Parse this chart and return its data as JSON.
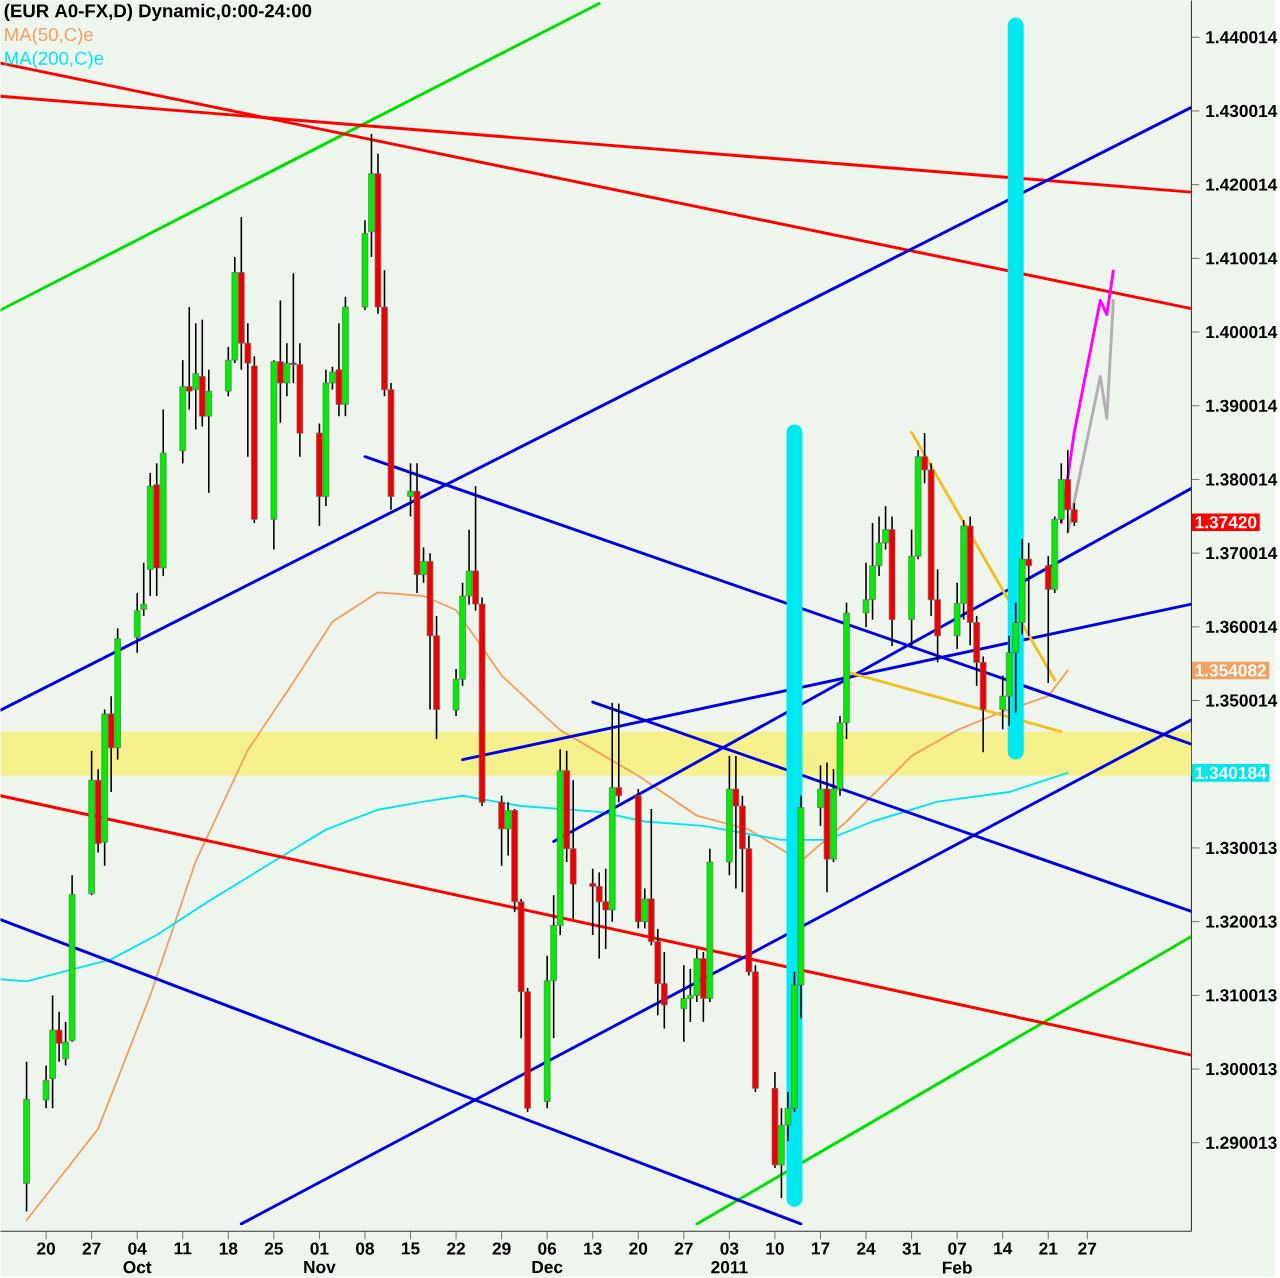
{
  "chart_data": {
    "type": "candlestick",
    "title": "(EUR A0-FX,D) Dynamic,0:00-24:00",
    "legend": "top left",
    "xlim": [
      "2010-09-13",
      "2011-03-15"
    ],
    "ylim": [
      1.278,
      1.445
    ],
    "xticks": [
      {
        "value": "2010-09-20",
        "label": "20"
      },
      {
        "value": "2010-09-27",
        "label": "27"
      },
      {
        "value": "2010-10-04",
        "label": "04"
      },
      {
        "value": "2010-10-11",
        "label": "11"
      },
      {
        "value": "2010-10-18",
        "label": "18"
      },
      {
        "value": "2010-10-25",
        "label": "25"
      },
      {
        "value": "2010-11-01",
        "label": "01"
      },
      {
        "value": "2010-11-08",
        "label": "08"
      },
      {
        "value": "2010-11-15",
        "label": "15"
      },
      {
        "value": "2010-11-22",
        "label": "22"
      },
      {
        "value": "2010-11-29",
        "label": "29"
      },
      {
        "value": "2010-12-06",
        "label": "06"
      },
      {
        "value": "2010-12-13",
        "label": "13"
      },
      {
        "value": "2010-12-20",
        "label": "20"
      },
      {
        "value": "2010-12-27",
        "label": "27"
      },
      {
        "value": "2011-01-03",
        "label": "03"
      },
      {
        "value": "2011-01-10",
        "label": "10"
      },
      {
        "value": "2011-01-17",
        "label": "17"
      },
      {
        "value": "2011-01-24",
        "label": "24"
      },
      {
        "value": "2011-01-31",
        "label": "31"
      },
      {
        "value": "2011-02-07",
        "label": "07"
      },
      {
        "value": "2011-02-14",
        "label": "14"
      },
      {
        "value": "2011-02-21",
        "label": "21"
      },
      {
        "value": "2011-02-27",
        "label": "27"
      }
    ],
    "x2lim": [
      "2010-09-13",
      "2011-03-15"
    ],
    "x2ticks": [
      {
        "value": "2010-10-04",
        "label": "Oct"
      },
      {
        "value": "2010-11-01",
        "label": "Nov"
      },
      {
        "value": "2010-12-06",
        "label": "Dec"
      },
      {
        "value": "2011-01-03",
        "label": "2011"
      },
      {
        "value": "2011-02-07",
        "label": "Feb"
      }
    ],
    "yticks": [
      1.290013,
      1.300013,
      1.310013,
      1.320013,
      1.330013,
      1.350014,
      1.360014,
      1.370014,
      1.380014,
      1.390014,
      1.400014,
      1.410014,
      1.420014,
      1.430014,
      1.440014
    ],
    "annotations": [
      "1.37420",
      "1.354082",
      "1.340184"
    ],
    "bands": [
      {
        "axis": "y",
        "from": 1.3398,
        "to": 1.3458,
        "color": "#f4f08c"
      }
    ],
    "x": [
      "2010-09-17",
      "2010-09-20",
      "2010-09-21",
      "2010-09-22",
      "2010-09-23",
      "2010-09-24",
      "2010-09-27",
      "2010-09-28",
      "2010-09-29",
      "2010-09-30",
      "2010-10-01",
      "2010-10-04",
      "2010-10-05",
      "2010-10-06",
      "2010-10-07",
      "2010-10-08",
      "2010-10-11",
      "2010-10-12",
      "2010-10-13",
      "2010-10-14",
      "2010-10-15",
      "2010-10-18",
      "2010-10-19",
      "2010-10-20",
      "2010-10-21",
      "2010-10-22",
      "2010-10-25",
      "2010-10-26",
      "2010-10-27",
      "2010-10-28",
      "2010-10-29",
      "2010-11-01",
      "2010-11-02",
      "2010-11-03",
      "2010-11-04",
      "2010-11-05",
      "2010-11-08",
      "2010-11-09",
      "2010-11-10",
      "2010-11-11",
      "2010-11-12",
      "2010-11-15",
      "2010-11-16",
      "2010-11-17",
      "2010-11-18",
      "2010-11-19",
      "2010-11-22",
      "2010-11-23",
      "2010-11-24",
      "2010-11-25",
      "2010-11-26",
      "2010-11-29",
      "2010-11-30",
      "2010-12-01",
      "2010-12-02",
      "2010-12-03",
      "2010-12-06",
      "2010-12-07",
      "2010-12-08",
      "2010-12-09",
      "2010-12-10",
      "2010-12-13",
      "2010-12-14",
      "2010-12-15",
      "2010-12-16",
      "2010-12-17",
      "2010-12-20",
      "2010-12-21",
      "2010-12-22",
      "2010-12-23",
      "2010-12-24",
      "2010-12-27",
      "2010-12-28",
      "2010-12-29",
      "2010-12-30",
      "2010-12-31",
      "2011-01-03",
      "2011-01-04",
      "2011-01-05",
      "2011-01-06",
      "2011-01-07",
      "2011-01-10",
      "2011-01-11",
      "2011-01-12",
      "2011-01-13",
      "2011-01-14",
      "2011-01-17",
      "2011-01-18",
      "2011-01-19",
      "2011-01-20",
      "2011-01-21",
      "2011-01-24",
      "2011-01-25",
      "2011-01-26",
      "2011-01-27",
      "2011-01-28",
      "2011-01-31",
      "2011-02-01",
      "2011-02-02",
      "2011-02-03",
      "2011-02-04",
      "2011-02-07",
      "2011-02-08",
      "2011-02-09",
      "2011-02-10",
      "2011-02-11",
      "2011-02-14",
      "2011-02-15",
      "2011-02-16",
      "2011-02-17",
      "2011-02-18",
      "2011-02-21",
      "2011-02-22",
      "2011-02-23",
      "2011-02-24",
      "2011-02-25"
    ],
    "ohlc": [
      [
        1.2845,
        1.301,
        1.2807,
        1.2959
      ],
      [
        1.2958,
        1.3005,
        1.2947,
        1.2985
      ],
      [
        1.2987,
        1.31,
        1.2947,
        1.3053
      ],
      [
        1.3053,
        1.3078,
        1.301,
        1.3035
      ],
      [
        1.3014,
        1.3064,
        1.3005,
        1.3037
      ],
      [
        1.3039,
        1.3263,
        1.3037,
        1.3237
      ],
      [
        1.3238,
        1.3432,
        1.3236,
        1.3392
      ],
      [
        1.3392,
        1.3407,
        1.3294,
        1.3306
      ],
      [
        1.3308,
        1.3488,
        1.3276,
        1.3482
      ],
      [
        1.3482,
        1.3506,
        1.3376,
        1.3436
      ],
      [
        1.3436,
        1.3598,
        1.342,
        1.3584
      ],
      [
        1.3586,
        1.3646,
        1.3565,
        1.3622
      ],
      [
        1.3624,
        1.3687,
        1.3615,
        1.3631
      ],
      [
        1.3678,
        1.3809,
        1.3642,
        1.3791
      ],
      [
        1.3793,
        1.3822,
        1.3642,
        1.368
      ],
      [
        1.368,
        1.3895,
        1.3669,
        1.3836
      ],
      [
        1.3839,
        1.3962,
        1.3822,
        1.3926
      ],
      [
        1.3926,
        1.4034,
        1.3895,
        1.392
      ],
      [
        1.3922,
        1.4012,
        1.3868,
        1.3944
      ],
      [
        1.394,
        1.4017,
        1.3872,
        1.3886
      ],
      [
        1.3886,
        1.3949,
        1.3782,
        1.392
      ],
      [
        1.392,
        1.398,
        1.3913,
        1.3962
      ],
      [
        1.3962,
        1.4102,
        1.3958,
        1.4081
      ],
      [
        1.4081,
        1.4156,
        1.3949,
        1.3985
      ],
      [
        1.3985,
        1.4012,
        1.3831,
        1.3958
      ],
      [
        1.3954,
        1.3967,
        1.3741,
        1.3746
      ],
      [
        1.3746,
        1.3962,
        1.3705,
        1.396
      ],
      [
        1.396,
        1.4043,
        1.3877,
        1.3931
      ],
      [
        1.3931,
        1.3985,
        1.3913,
        1.3958
      ],
      [
        1.3958,
        1.408,
        1.3931,
        1.3956
      ],
      [
        1.3956,
        1.3985,
        1.3831,
        1.3863
      ],
      [
        1.3863,
        1.3876,
        1.3737,
        1.3777
      ],
      [
        1.3777,
        1.3949,
        1.3764,
        1.3931
      ],
      [
        1.3931,
        1.3953,
        1.3922,
        1.3946
      ],
      [
        1.3949,
        1.4012,
        1.3886,
        1.3902
      ],
      [
        1.3902,
        1.4048,
        1.3886,
        1.4034
      ],
      [
        1.4034,
        1.4152,
        1.403,
        1.4134
      ],
      [
        1.4136,
        1.4269,
        1.4102,
        1.4215
      ],
      [
        1.4215,
        1.4242,
        1.4025,
        1.4034
      ],
      [
        1.4034,
        1.4084,
        1.3913,
        1.3922
      ],
      [
        1.3922,
        1.3931,
        1.3759,
        1.3777
      ],
      [
        1.3777,
        1.3822,
        1.375,
        1.3784
      ],
      [
        1.3784,
        1.3822,
        1.3646,
        1.3671
      ],
      [
        1.3671,
        1.3708,
        1.366,
        1.3689
      ],
      [
        1.3689,
        1.37,
        1.3488,
        1.3588
      ],
      [
        1.3588,
        1.3615,
        1.3448,
        1.3488
      ],
      [
        1.3487,
        1.3543,
        1.3479,
        1.3529
      ],
      [
        1.3529,
        1.366,
        1.352,
        1.3642
      ],
      [
        1.3642,
        1.3732,
        1.363,
        1.3676
      ],
      [
        1.3676,
        1.3791,
        1.3622,
        1.3631
      ],
      [
        1.3631,
        1.364,
        1.3357,
        1.3362
      ],
      [
        1.3362,
        1.3371,
        1.3276,
        1.3326
      ],
      [
        1.3326,
        1.3362,
        1.329,
        1.3351
      ],
      [
        1.3351,
        1.3353,
        1.3213,
        1.3227
      ],
      [
        1.3227,
        1.3231,
        1.3042,
        1.3105
      ],
      [
        1.3105,
        1.311,
        1.2942,
        1.2947
      ],
      [
        1.2956,
        1.3154,
        1.2947,
        1.312
      ],
      [
        1.312,
        1.3236,
        1.3042,
        1.3195
      ],
      [
        1.3195,
        1.3434,
        1.3182,
        1.3405
      ],
      [
        1.3405,
        1.3432,
        1.3281,
        1.3299
      ],
      [
        1.3299,
        1.3392,
        1.3204,
        1.3251
      ],
      [
        1.3252,
        1.3272,
        1.3182,
        1.3248
      ],
      [
        1.3248,
        1.3267,
        1.315,
        1.3227
      ],
      [
        1.3227,
        1.3272,
        1.3163,
        1.3216
      ],
      [
        1.3216,
        1.3497,
        1.32,
        1.3382
      ],
      [
        1.3382,
        1.3496,
        1.3362,
        1.3371
      ],
      [
        1.3371,
        1.338,
        1.3191,
        1.32
      ],
      [
        1.32,
        1.3245,
        1.3191,
        1.3231
      ],
      [
        1.3231,
        1.3353,
        1.3168,
        1.3173
      ],
      [
        1.3173,
        1.319,
        1.3073,
        1.3116
      ],
      [
        1.3116,
        1.3159,
        1.3055,
        1.3087
      ],
      [
        1.3082,
        1.3141,
        1.3037,
        1.3096
      ],
      [
        1.3096,
        1.3136,
        1.3064,
        1.31
      ],
      [
        1.31,
        1.3163,
        1.3091,
        1.315
      ],
      [
        1.315,
        1.3159,
        1.3064,
        1.3096
      ],
      [
        1.3096,
        1.3299,
        1.3091,
        1.3281
      ],
      [
        1.3281,
        1.3425,
        1.3263,
        1.338
      ],
      [
        1.338,
        1.3425,
        1.3245,
        1.3357
      ],
      [
        1.3357,
        1.3371,
        1.324,
        1.3299
      ],
      [
        1.3299,
        1.3317,
        1.3127,
        1.3132
      ],
      [
        1.3132,
        1.3141,
        1.2969,
        1.2974
      ],
      [
        1.2974,
        1.2996,
        1.2866,
        1.287
      ],
      [
        1.287,
        1.2947,
        1.2825,
        1.2924
      ],
      [
        1.2924,
        1.2969,
        1.2902,
        1.2947
      ],
      [
        1.2947,
        1.3132,
        1.2942,
        1.3114
      ],
      [
        1.3114,
        1.3371,
        1.3069,
        1.3355
      ],
      [
        1.3355,
        1.3412,
        1.333,
        1.338
      ],
      [
        1.338,
        1.3416,
        1.324,
        1.3285
      ],
      [
        1.3285,
        1.3407,
        1.3281,
        1.338
      ],
      [
        1.338,
        1.3479,
        1.3371,
        1.347
      ],
      [
        1.347,
        1.3633,
        1.3448,
        1.3619
      ],
      [
        1.3619,
        1.3687,
        1.36,
        1.3637
      ],
      [
        1.3637,
        1.3741,
        1.361,
        1.3683
      ],
      [
        1.3683,
        1.375,
        1.3669,
        1.3714
      ],
      [
        1.3714,
        1.3764,
        1.3705,
        1.3732
      ],
      [
        1.3732,
        1.375,
        1.3574,
        1.361
      ],
      [
        1.361,
        1.3732,
        1.3574,
        1.3696
      ],
      [
        1.3696,
        1.384,
        1.3692,
        1.3831
      ],
      [
        1.3831,
        1.3863,
        1.3795,
        1.3813
      ],
      [
        1.3813,
        1.3822,
        1.3615,
        1.3637
      ],
      [
        1.3637,
        1.3678,
        1.3552,
        1.3588
      ],
      [
        1.3588,
        1.366,
        1.357,
        1.3632
      ],
      [
        1.3632,
        1.3745,
        1.361,
        1.3737
      ],
      [
        1.3737,
        1.375,
        1.3575,
        1.3606
      ],
      [
        1.3606,
        1.3615,
        1.352,
        1.3552
      ],
      [
        1.3552,
        1.356,
        1.343,
        1.3488
      ],
      [
        1.3488,
        1.3534,
        1.3461,
        1.3506
      ],
      [
        1.3506,
        1.3588,
        1.3466,
        1.3565
      ],
      [
        1.3565,
        1.3633,
        1.3484,
        1.3606
      ],
      [
        1.3606,
        1.3719,
        1.359,
        1.3692
      ],
      [
        1.3692,
        1.3714,
        1.3588,
        1.3683
      ],
      [
        1.3683,
        1.3696,
        1.3524,
        1.3651
      ],
      [
        1.3651,
        1.375,
        1.3646,
        1.3746
      ],
      [
        1.3746,
        1.3822,
        1.3741,
        1.38
      ],
      [
        1.38,
        1.384,
        1.3728,
        1.3759
      ],
      [
        1.3759,
        1.3768,
        1.3737,
        1.3742
      ]
    ],
    "series": [
      {
        "type": "line",
        "name": "MA(50,C)e",
        "color": "#f0a060",
        "x": [
          "2010-09-17",
          "2010-09-28",
          "2010-10-06",
          "2010-10-13",
          "2010-10-21",
          "2010-10-28",
          "2010-11-03",
          "2010-11-10",
          "2010-11-17",
          "2010-11-22",
          "2010-11-29",
          "2010-12-08",
          "2010-12-20",
          "2010-12-29",
          "2011-01-06",
          "2011-01-14",
          "2011-01-21",
          "2011-01-31",
          "2011-02-07",
          "2011-02-14",
          "2011-02-21",
          "2011-02-24"
        ],
        "values": [
          1.2795,
          1.2919,
          1.31,
          1.3282,
          1.3433,
          1.3525,
          1.3607,
          1.3647,
          1.3642,
          1.3623,
          1.3534,
          1.346,
          1.3398,
          1.3344,
          1.3325,
          1.3282,
          1.3336,
          1.3425,
          1.346,
          1.3485,
          1.3506,
          1.3541
        ]
      },
      {
        "type": "line",
        "name": "MA(200,C)e",
        "color": "#00e5ee",
        "x": [
          "2010-09-13",
          "2010-09-17",
          "2010-09-23",
          "2010-09-30",
          "2010-10-07",
          "2010-10-15",
          "2010-10-25",
          "2010-11-02",
          "2010-11-10",
          "2010-11-17",
          "2010-11-23",
          "2010-12-02",
          "2010-12-14",
          "2010-12-21",
          "2010-12-30",
          "2011-01-11",
          "2011-01-18",
          "2011-01-25",
          "2011-02-04",
          "2011-02-15",
          "2011-02-24"
        ],
        "values": [
          1.3122,
          1.3119,
          1.3133,
          1.3149,
          1.3182,
          1.3228,
          1.3282,
          1.3325,
          1.3352,
          1.3363,
          1.3371,
          1.3357,
          1.3349,
          1.3336,
          1.333,
          1.3311,
          1.3311,
          1.3336,
          1.3363,
          1.3376,
          1.3402
        ]
      },
      {
        "type": "line",
        "color": "#00e000",
        "x": [
          "2010-09-13",
          "2010-12-14"
        ],
        "values": [
          1.403,
          1.4446
        ]
      },
      {
        "type": "line",
        "color": "#00e000",
        "x": [
          "2010-12-29",
          "2011-03-15"
        ],
        "values": [
          1.279,
          1.318
        ]
      },
      {
        "type": "line",
        "color": "#ff0000",
        "x": [
          "2010-09-13",
          "2011-03-15"
        ],
        "values": [
          1.432,
          1.419
        ]
      },
      {
        "type": "line",
        "color": "#ff0000",
        "x": [
          "2010-09-13",
          "2011-03-15"
        ],
        "values": [
          1.4365,
          1.4032
        ]
      },
      {
        "type": "line",
        "color": "#ff0000",
        "x": [
          "2010-09-13",
          "2011-03-15"
        ],
        "values": [
          1.3371,
          1.3019
        ]
      },
      {
        "type": "line",
        "color": "#0000e0",
        "x": [
          "2010-09-13",
          "2011-03-15"
        ],
        "values": [
          1.3487,
          1.4305
        ]
      },
      {
        "type": "line",
        "color": "#0000e0",
        "x": [
          "2010-10-20",
          "2011-03-15"
        ],
        "values": [
          1.279,
          1.3474
        ]
      },
      {
        "type": "line",
        "color": "#0000e0",
        "x": [
          "2010-11-08",
          "2011-03-15"
        ],
        "values": [
          1.3831,
          1.3441
        ]
      },
      {
        "type": "line",
        "color": "#0000e0",
        "x": [
          "2010-09-13",
          "2011-01-14"
        ],
        "values": [
          1.3203,
          1.279
        ]
      },
      {
        "type": "line",
        "color": "#0000e0",
        "x": [
          "2010-12-13",
          "2011-03-15"
        ],
        "values": [
          1.3498,
          1.3214
        ]
      },
      {
        "type": "line",
        "color": "#0000e0",
        "x": [
          "2010-11-23",
          "2011-03-15"
        ],
        "values": [
          1.342,
          1.3631
        ]
      },
      {
        "type": "line",
        "color": "#0000e0",
        "x": [
          "2010-12-07",
          "2011-03-15"
        ],
        "values": [
          1.3309,
          1.3788
        ]
      },
      {
        "type": "line",
        "color": "#f0c020",
        "x": [
          "2011-01-31",
          "2011-02-22"
        ],
        "values": [
          1.3864,
          1.3528
        ]
      },
      {
        "type": "line",
        "color": "#f0c020",
        "x": [
          "2011-01-21",
          "2011-02-23"
        ],
        "values": [
          1.3539,
          1.3458
        ]
      },
      {
        "type": "line",
        "color": "#00e8f0",
        "x": [
          "2011-01-13",
          "2011-01-13"
        ],
        "values": [
          1.2824,
          1.3864
        ]
      },
      {
        "type": "line",
        "color": "#00e8f0",
        "x": [
          "2011-02-16",
          "2011-02-16"
        ],
        "values": [
          1.4416,
          1.3431
        ]
      },
      {
        "type": "line",
        "color": "#ff00ff",
        "x": [
          "2011-02-23",
          "2011-02-25",
          "2011-03-01",
          "2011-03-02",
          "2011-03-03"
        ],
        "values": [
          1.3742,
          1.3864,
          1.4043,
          1.4024,
          1.4083
        ]
      },
      {
        "type": "line",
        "color": "#b0b0b0",
        "x": [
          "2011-02-24",
          "2011-03-01",
          "2011-03-02",
          "2011-03-03"
        ],
        "values": [
          1.3728,
          1.394,
          1.3883,
          1.4043
        ]
      }
    ]
  }
}
